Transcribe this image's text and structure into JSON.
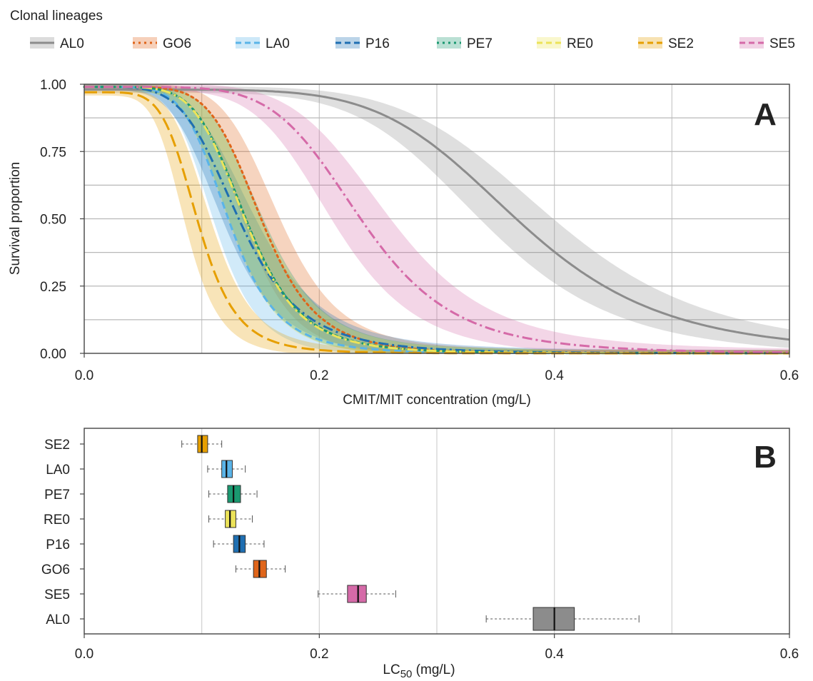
{
  "legend": {
    "title": "Clonal lineages",
    "items": [
      {
        "label": "AL0",
        "color": "#8c8c8c",
        "dash": "solid"
      },
      {
        "label": "GO6",
        "color": "#e0651a",
        "dash": "dotted"
      },
      {
        "label": "LA0",
        "color": "#5ab4e8",
        "dash": "dashed"
      },
      {
        "label": "P16",
        "color": "#1f6fb2",
        "dash": "dashdot"
      },
      {
        "label": "PE7",
        "color": "#1a9970",
        "dash": "dotted"
      },
      {
        "label": "RE0",
        "color": "#ece359",
        "dash": "dashdot"
      },
      {
        "label": "SE2",
        "color": "#e69f00",
        "dash": "longdash"
      },
      {
        "label": "SE5",
        "color": "#d56aa8",
        "dash": "dashdot"
      }
    ]
  },
  "chart_data": [
    {
      "type": "line",
      "panel_label": "A",
      "xlabel": "CMIT/MIT concentration (mg/L)",
      "ylabel": "Survival proportion",
      "xlim": [
        0,
        0.6
      ],
      "ylim": [
        0,
        1
      ],
      "xticks": [
        "0.0",
        "0.2",
        "0.4",
        "0.6"
      ],
      "yticks": [
        "0.00",
        "0.25",
        "0.50",
        "0.75",
        "1.00"
      ],
      "grid": true,
      "curve_model": "log-logistic",
      "series": [
        {
          "name": "AL0",
          "lc50": 0.37,
          "slope": 6.0,
          "top": 0.98,
          "band": 0.035
        },
        {
          "name": "GO6",
          "lc50": 0.151,
          "slope": 6.5,
          "top": 0.99,
          "band": 0.045
        },
        {
          "name": "LA0",
          "lc50": 0.123,
          "slope": 6.0,
          "top": 0.99,
          "band": 0.045
        },
        {
          "name": "P16",
          "lc50": 0.132,
          "slope": 5.0,
          "top": 0.99,
          "band": 0.045
        },
        {
          "name": "PE7",
          "lc50": 0.138,
          "slope": 6.0,
          "top": 0.99,
          "band": 0.045
        },
        {
          "name": "RE0",
          "lc50": 0.137,
          "slope": 6.0,
          "top": 0.99,
          "band": 0.045
        },
        {
          "name": "SE2",
          "lc50": 0.097,
          "slope": 6.0,
          "top": 0.97,
          "band": 0.05
        },
        {
          "name": "SE5",
          "lc50": 0.236,
          "slope": 6.0,
          "top": 0.99,
          "band": 0.045
        }
      ]
    },
    {
      "type": "box",
      "panel_label": "B",
      "xlabel_main": "LC",
      "xlabel_sub": "50",
      "xlabel_unit": " (mg/L)",
      "xlim": [
        0,
        0.6
      ],
      "xticks": [
        "0.0",
        "0.2",
        "0.4",
        "0.6"
      ],
      "grid": true,
      "categories": [
        "SE2",
        "LA0",
        "PE7",
        "RE0",
        "P16",
        "GO6",
        "SE5",
        "AL0"
      ],
      "boxes": [
        {
          "name": "SE2",
          "min": 0.083,
          "q1": 0.0965,
          "median": 0.1,
          "q3": 0.105,
          "max": 0.117
        },
        {
          "name": "LA0",
          "min": 0.105,
          "q1": 0.117,
          "median": 0.121,
          "q3": 0.126,
          "max": 0.137
        },
        {
          "name": "PE7",
          "min": 0.106,
          "q1": 0.122,
          "median": 0.127,
          "q3": 0.133,
          "max": 0.147
        },
        {
          "name": "RE0",
          "min": 0.106,
          "q1": 0.12,
          "median": 0.124,
          "q3": 0.129,
          "max": 0.143
        },
        {
          "name": "P16",
          "min": 0.11,
          "q1": 0.127,
          "median": 0.132,
          "q3": 0.137,
          "max": 0.153
        },
        {
          "name": "GO6",
          "min": 0.129,
          "q1": 0.144,
          "median": 0.149,
          "q3": 0.155,
          "max": 0.171
        },
        {
          "name": "SE5",
          "min": 0.199,
          "q1": 0.224,
          "median": 0.233,
          "q3": 0.24,
          "max": 0.265
        },
        {
          "name": "AL0",
          "min": 0.342,
          "q1": 0.382,
          "median": 0.4,
          "q3": 0.417,
          "max": 0.472
        }
      ]
    }
  ]
}
